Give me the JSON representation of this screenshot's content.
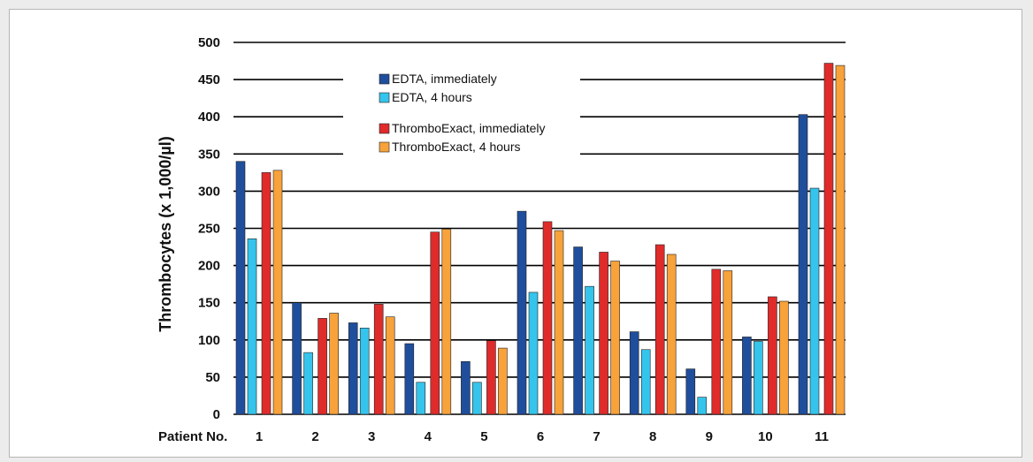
{
  "chart_data": {
    "type": "bar",
    "title": "",
    "ylabel": "Thrombocytes (x 1,000/µl)",
    "xlabel": "Patient No.",
    "ylim": [
      0,
      500
    ],
    "yticks": [
      0,
      50,
      100,
      150,
      200,
      250,
      300,
      350,
      400,
      450,
      500
    ],
    "grid": true,
    "legend_position": "top-center",
    "categories": [
      "1",
      "2",
      "3",
      "4",
      "5",
      "6",
      "7",
      "8",
      "9",
      "10",
      "11"
    ],
    "series": [
      {
        "name": "EDTA, immediately",
        "color": "#1f4e9c",
        "values": [
          340,
          150,
          123,
          95,
          71,
          273,
          225,
          111,
          61,
          104,
          403
        ]
      },
      {
        "name": "EDTA, 4 hours",
        "color": "#35c4ec",
        "values": [
          236,
          83,
          116,
          43,
          43,
          164,
          172,
          87,
          23,
          98,
          304
        ]
      },
      {
        "name": "ThromboExact, immediately",
        "color": "#e02b2b",
        "values": [
          325,
          129,
          148,
          245,
          99,
          259,
          218,
          228,
          195,
          158,
          472
        ]
      },
      {
        "name": "ThromboExact, 4 hours",
        "color": "#f7a23a",
        "values": [
          328,
          136,
          131,
          249,
          89,
          247,
          206,
          215,
          193,
          152,
          469
        ]
      }
    ]
  }
}
